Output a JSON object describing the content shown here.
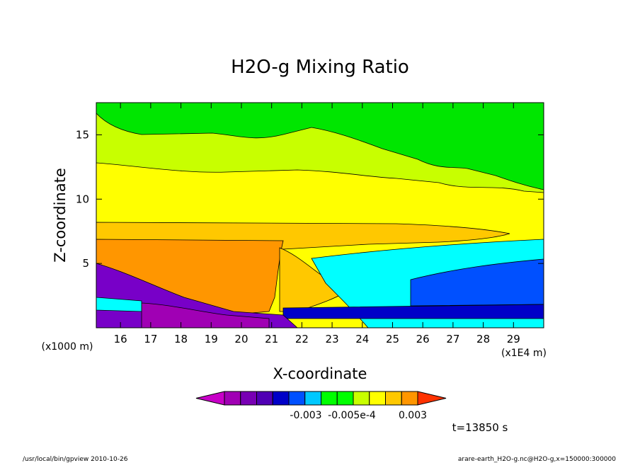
{
  "chart_data": {
    "type": "heatmap",
    "title": "H2O-g Mixing Ratio",
    "xlabel": "X-coordinate",
    "ylabel": "Z-coordinate",
    "x_unit_left": "(x1000 m)",
    "x_unit_right": "(x1E4 m)",
    "xlim": [
      15.2,
      30
    ],
    "ylim": [
      0,
      17.5
    ],
    "x_ticks": [
      16,
      17,
      18,
      19,
      20,
      21,
      22,
      23,
      24,
      25,
      26,
      27,
      28,
      29
    ],
    "y_ticks": [
      5,
      10,
      15
    ],
    "colorbar": {
      "labels": [
        "-0.003",
        "-0.005e-4",
        "0.003"
      ],
      "colors": [
        "#c800c8",
        "#a000b4",
        "#7800b4",
        "#5000b4",
        "#0000c8",
        "#0050ff",
        "#00c8ff",
        "#00ff00",
        "#00ff00",
        "#c8ff00",
        "#ffff00",
        "#ffc800",
        "#ff9600",
        "#ff3200"
      ]
    },
    "time_label": "t=13850 s",
    "footer_left": "/usr/local/bin/gpview  2010-10-26",
    "footer_right": "arare-earth_H2O-g.nc@H2O-g,x=150000:300000"
  },
  "colors": {
    "green": "#00e600",
    "yellow_green": "#c8ff00",
    "yellow": "#ffff00",
    "light_orange": "#ffc800",
    "orange": "#ff9600",
    "cyan": "#00ffff",
    "blue": "#0050ff",
    "dark_blue": "#0000c8",
    "violet": "#7800c8",
    "purple": "#a000b4"
  }
}
